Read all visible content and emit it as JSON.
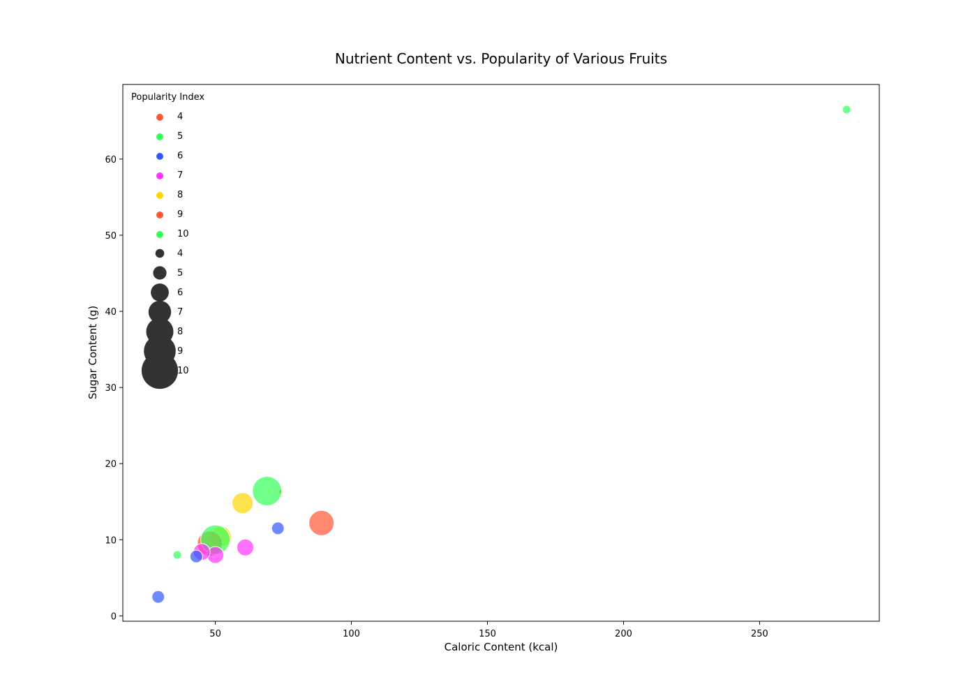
{
  "chart_data": {
    "type": "scatter",
    "title": "Nutrient Content vs. Popularity of Various Fruits",
    "xlabel": "Caloric Content (kcal)",
    "ylabel": "Sugar Content (g)",
    "xlim": [
      16,
      294
    ],
    "ylim": [
      -0.7,
      69.8
    ],
    "x_ticks": [
      50,
      100,
      150,
      200,
      250
    ],
    "y_ticks": [
      0,
      10,
      20,
      30,
      40,
      50,
      60
    ],
    "grid": false,
    "legend": {
      "title": "Popularity Index",
      "placement": "top-left",
      "hue_entries": [
        {
          "label": "4",
          "color": "#ff5733"
        },
        {
          "label": "5",
          "color": "#33ff57"
        },
        {
          "label": "6",
          "color": "#3357ff"
        },
        {
          "label": "7",
          "color": "#ff33ff"
        },
        {
          "label": "8",
          "color": "#ffd700"
        },
        {
          "label": "9",
          "color": "#ff5733"
        },
        {
          "label": "10",
          "color": "#33ff57"
        }
      ],
      "size_entries": [
        {
          "label": "4",
          "value": 4
        },
        {
          "label": "5",
          "value": 5
        },
        {
          "label": "6",
          "value": 6
        },
        {
          "label": "7",
          "value": 7
        },
        {
          "label": "8",
          "value": 8
        },
        {
          "label": "9",
          "value": 9
        },
        {
          "label": "10",
          "value": 10
        }
      ],
      "size_marker_color": "#333333"
    },
    "points": [
      {
        "x": 282,
        "y": 66.5,
        "popularity": 5,
        "color": "#33ff57"
      },
      {
        "x": 74,
        "y": 16.3,
        "popularity": 4,
        "color": "#ff5733"
      },
      {
        "x": 69,
        "y": 16.4,
        "popularity": 10,
        "color": "#33ff57"
      },
      {
        "x": 60,
        "y": 14.8,
        "popularity": 8,
        "color": "#ffd700"
      },
      {
        "x": 89,
        "y": 12.2,
        "popularity": 9,
        "color": "#ff5733"
      },
      {
        "x": 73,
        "y": 11.5,
        "popularity": 6,
        "color": "#3357ff"
      },
      {
        "x": 52,
        "y": 10.4,
        "popularity": 8,
        "color": "#ffd700"
      },
      {
        "x": 48,
        "y": 9.5,
        "popularity": 9,
        "color": "#ff5733"
      },
      {
        "x": 50,
        "y": 10.0,
        "popularity": 10,
        "color": "#33ff57"
      },
      {
        "x": 61,
        "y": 9.0,
        "popularity": 7,
        "color": "#ff33ff"
      },
      {
        "x": 50,
        "y": 8.0,
        "popularity": 7,
        "color": "#ff33ff"
      },
      {
        "x": 45,
        "y": 8.4,
        "popularity": 7,
        "color": "#ff33ff"
      },
      {
        "x": 43,
        "y": 7.8,
        "popularity": 6,
        "color": "#3357ff"
      },
      {
        "x": 36,
        "y": 8.0,
        "popularity": 5,
        "color": "#33ff57"
      },
      {
        "x": 29,
        "y": 2.5,
        "popularity": 6,
        "color": "#3357ff"
      }
    ]
  }
}
